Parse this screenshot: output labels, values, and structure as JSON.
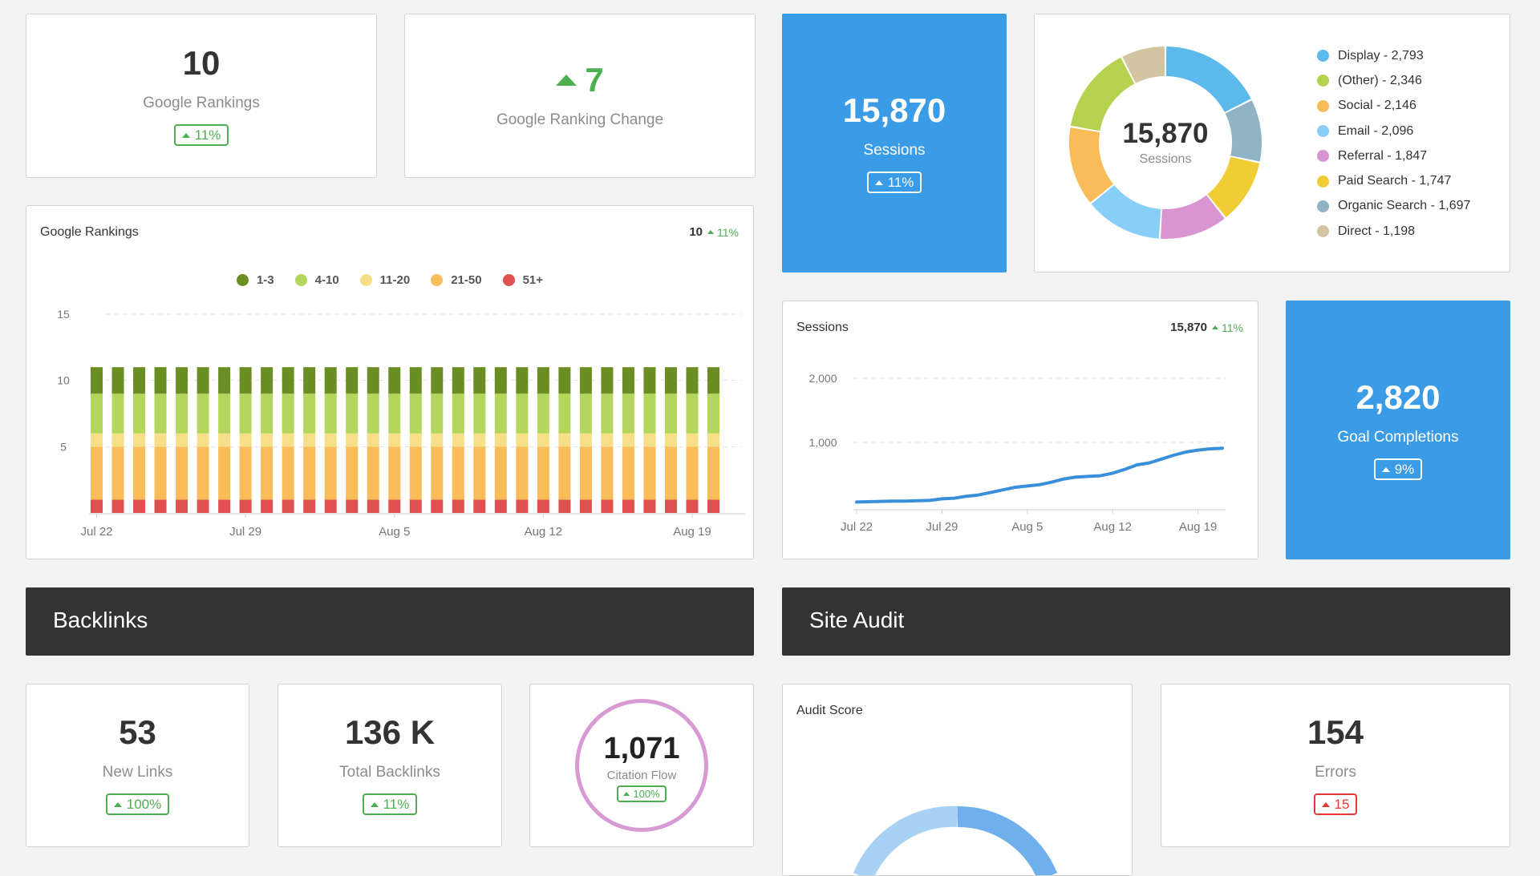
{
  "kpis": {
    "google_rankings": {
      "value": "10",
      "label": "Google Rankings",
      "change": "11%"
    },
    "ranking_change": {
      "value": "7",
      "label": "Google Ranking Change"
    },
    "sessions": {
      "value": "15,870",
      "label": "Sessions",
      "change": "11%"
    },
    "goal_completions": {
      "value": "2,820",
      "label": "Goal Completions",
      "change": "9%"
    }
  },
  "donut": {
    "center_value": "15,870",
    "center_label": "Sessions",
    "legend": [
      {
        "label": "Display - 2,793",
        "color": "#5bb9ec"
      },
      {
        "label": "(Other) - 2,346",
        "color": "#b4d24e"
      },
      {
        "label": "Social - 2,146",
        "color": "#f8bc58"
      },
      {
        "label": "Email - 2,096",
        "color": "#89cef7"
      },
      {
        "label": "Referral - 1,847",
        "color": "#d994d2"
      },
      {
        "label": "Paid Search - 1,747",
        "color": "#f1cd35"
      },
      {
        "label": "Organic Search - 1,697",
        "color": "#90b4c4"
      },
      {
        "label": "Direct - 1,198",
        "color": "#d3c5a2"
      }
    ]
  },
  "rankings_chart": {
    "title": "Google Rankings",
    "stat_value": "10",
    "stat_change": "11%"
  },
  "sessions_chart": {
    "title": "Sessions",
    "stat_value": "15,870",
    "stat_change": "11%"
  },
  "chart_data": [
    {
      "type": "bar",
      "stacked": true,
      "title": "Google Rankings",
      "ylim": [
        0,
        15
      ],
      "yticks": [
        "15",
        "10",
        "5"
      ],
      "xtick_labels": [
        "Jul 22",
        "Jul 29",
        "Aug 5",
        "Aug 12",
        "Aug 19"
      ],
      "bar_count": 30,
      "grid": true,
      "legend_position": "top",
      "series": [
        {
          "name": "51+",
          "color": "#e05050",
          "value": 1
        },
        {
          "name": "21-50",
          "color": "#f8bc58",
          "value": 4
        },
        {
          "name": "11-20",
          "color": "#f6df86",
          "value": 1
        },
        {
          "name": "4-10",
          "color": "#b4d65c",
          "value": 3
        },
        {
          "name": "1-3",
          "color": "#6b8e23",
          "value": 2
        }
      ]
    },
    {
      "type": "line",
      "title": "Sessions",
      "ylim": [
        0,
        2000
      ],
      "yticks": [
        "2,000",
        "1,000"
      ],
      "xtick_labels": [
        "Jul 22",
        "Jul 29",
        "Aug 5",
        "Aug 12",
        "Aug 19"
      ],
      "grid": true,
      "color": "#3a8fdb",
      "values": [
        70,
        75,
        80,
        85,
        85,
        90,
        95,
        120,
        130,
        160,
        180,
        220,
        260,
        300,
        320,
        340,
        380,
        430,
        460,
        470,
        480,
        520,
        580,
        650,
        680,
        740,
        800,
        850,
        880,
        900,
        910
      ]
    }
  ],
  "sections": {
    "backlinks": "Backlinks",
    "site_audit": "Site Audit"
  },
  "backlinks": {
    "new_links": {
      "value": "53",
      "label": "New Links",
      "change": "100%"
    },
    "total_backlinks": {
      "value": "136 K",
      "label": "Total Backlinks",
      "change": "11%"
    },
    "citation_flow": {
      "value": "1,071",
      "label": "Citation Flow",
      "change": "100%"
    }
  },
  "audit": {
    "score_title": "Audit Score",
    "errors": {
      "value": "154",
      "label": "Errors",
      "change": "15"
    }
  }
}
